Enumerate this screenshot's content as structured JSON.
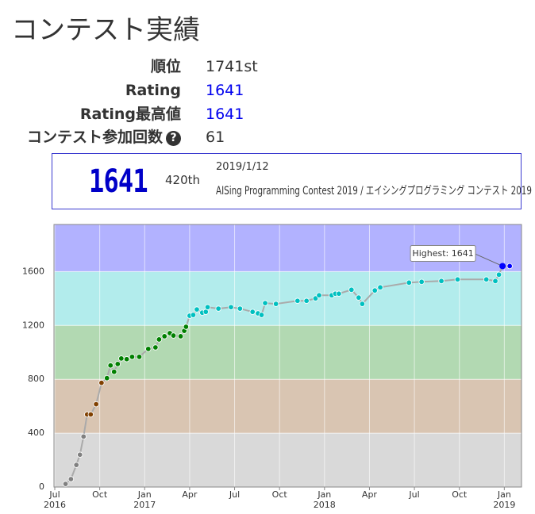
{
  "title": "コンテスト実績",
  "profile": [
    {
      "label": "順位",
      "value": "1741st"
    },
    {
      "label": "Rating",
      "value": "1641"
    },
    {
      "label": "Rating最高値",
      "value": "1641"
    },
    {
      "label": "コンテスト参加回数",
      "value": "61"
    }
  ],
  "help_icon": "?",
  "latest": {
    "rating": "1641",
    "rank": "420th",
    "date": "2019/1/12",
    "contest": "AISing Programming Contest 2019 / エイシングプログラミング コンテスト 2019"
  },
  "chart_data": {
    "type": "line",
    "x": [
      2016.56,
      2016.59,
      2016.62,
      2016.64,
      2016.66,
      2016.68,
      2016.7,
      2016.73,
      2016.76,
      2016.79,
      2016.81,
      2016.83,
      2016.85,
      2016.87,
      2016.9,
      2016.93,
      2016.97,
      2017.02,
      2017.06,
      2017.08,
      2017.11,
      2017.14,
      2017.16,
      2017.2,
      2017.22,
      2017.23,
      2017.25,
      2017.27,
      2017.29,
      2017.32,
      2017.34,
      2017.35,
      2017.41,
      2017.48,
      2017.53,
      2017.6,
      2017.63,
      2017.65,
      2017.67,
      2017.73,
      2017.85,
      2017.9,
      2017.95,
      2017.97,
      2018.04,
      2018.06,
      2018.08,
      2018.15,
      2018.19,
      2018.21,
      2018.28,
      2018.31,
      2018.47,
      2018.54,
      2018.65,
      2018.74,
      2018.9,
      2018.95,
      2018.97,
      2018.99,
      2019.03
    ],
    "series": [
      {
        "name": "Rating",
        "color": "#aaaaaa",
        "values": [
          23,
          59,
          164,
          240,
          375,
          539,
          539,
          615,
          774,
          809,
          903,
          856,
          914,
          955,
          950,
          967,
          967,
          1026,
          1037,
          1096,
          1120,
          1143,
          1125,
          1120,
          1160,
          1190,
          1272,
          1278,
          1319,
          1295,
          1301,
          1336,
          1325,
          1336,
          1325,
          1301,
          1290,
          1278,
          1366,
          1360,
          1383,
          1383,
          1401,
          1424,
          1424,
          1436,
          1436,
          1465,
          1407,
          1360,
          1460,
          1483,
          1518,
          1524,
          1530,
          1542,
          1542,
          1530,
          1577,
          1641,
          1641
        ]
      }
    ],
    "bands": [
      {
        "from": 0,
        "to": 400,
        "color": "#d9d9d9",
        "point": "#808080"
      },
      {
        "from": 400,
        "to": 800,
        "color": "#d9c5b2",
        "point": "#804000"
      },
      {
        "from": 800,
        "to": 1200,
        "color": "#b2d9b2",
        "point": "#008000"
      },
      {
        "from": 1200,
        "to": 1600,
        "color": "#b2ecec",
        "point": "#00c0c0"
      },
      {
        "from": 1600,
        "to": 1950,
        "color": "#b2b2ff",
        "point": "#0000ff"
      }
    ],
    "xlim": [
      2016.5,
      2019.1
    ],
    "ylim": [
      0,
      1950
    ],
    "yticks": [
      0,
      400,
      800,
      1200,
      1600
    ],
    "xticks": [
      {
        "value": 2016.5,
        "label": "Jul",
        "year": "2016"
      },
      {
        "value": 2016.75,
        "label": "Oct"
      },
      {
        "value": 2017.0,
        "label": "Jan",
        "year": "2017"
      },
      {
        "value": 2017.25,
        "label": "Apr"
      },
      {
        "value": 2017.5,
        "label": "Jul"
      },
      {
        "value": 2017.75,
        "label": "Oct"
      },
      {
        "value": 2018.0,
        "label": "Jan",
        "year": "2018"
      },
      {
        "value": 2018.25,
        "label": "Apr"
      },
      {
        "value": 2018.5,
        "label": "Jul"
      },
      {
        "value": 2018.75,
        "label": "Oct"
      },
      {
        "value": 2019.0,
        "label": "Jan",
        "year": "2019"
      }
    ],
    "grid": true,
    "annotation": {
      "text": "Highest: 1641",
      "index": 59
    }
  }
}
